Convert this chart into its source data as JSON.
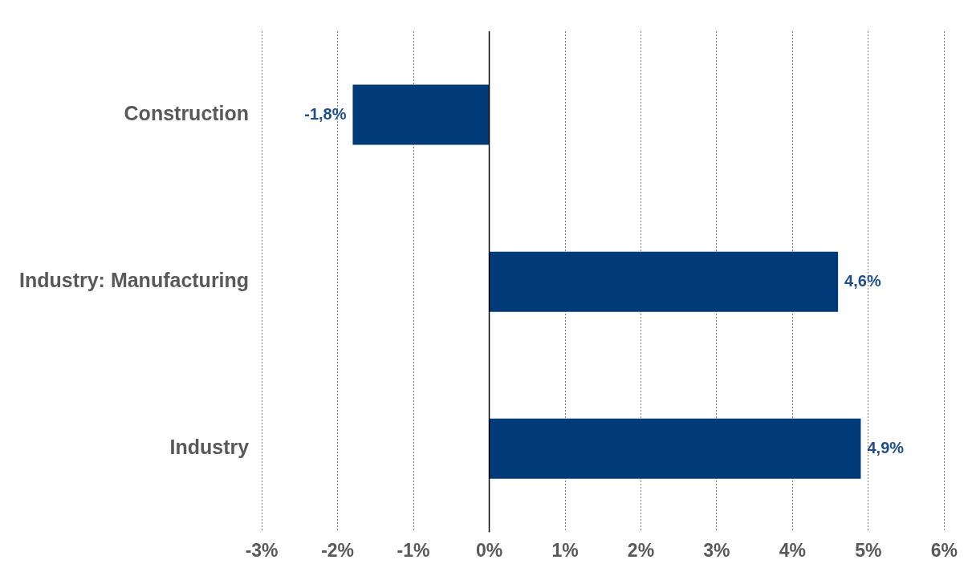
{
  "chart_data": {
    "type": "bar",
    "orientation": "horizontal",
    "categories": [
      "Construction",
      "Industry: Manufacturing",
      "Industry"
    ],
    "values": [
      -1.8,
      4.6,
      4.9
    ],
    "value_labels": [
      "-1,8%",
      "4,6%",
      "4,9%"
    ],
    "color": "#003a78",
    "xlim": [
      -3,
      6
    ],
    "xticks": [
      {
        "value": -3,
        "label": "-3%"
      },
      {
        "value": -2,
        "label": "-2%"
      },
      {
        "value": -1,
        "label": "-1%"
      },
      {
        "value": 0,
        "label": "0%"
      },
      {
        "value": 1,
        "label": "1%"
      },
      {
        "value": 2,
        "label": "2%"
      },
      {
        "value": 3,
        "label": "3%"
      },
      {
        "value": 4,
        "label": "4%"
      },
      {
        "value": 5,
        "label": "5%"
      },
      {
        "value": 6,
        "label": "6%"
      }
    ],
    "grid": "x",
    "legend": false
  }
}
